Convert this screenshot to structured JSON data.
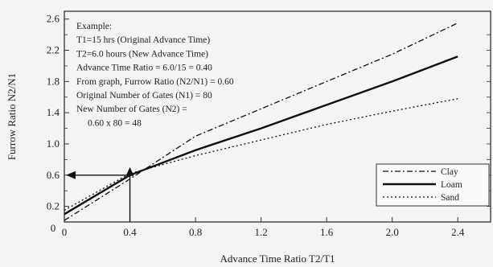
{
  "chart_data": {
    "type": "line",
    "xlabel": "Advance Time Ratio T2/T1",
    "ylabel": "Furrow Ratio N2/N1",
    "xlim": [
      0,
      2.6
    ],
    "ylim": [
      0,
      2.7
    ],
    "x_ticks": [
      "0",
      "0.4",
      "0.8",
      "1.2",
      "1.6",
      "2.0",
      "2.4"
    ],
    "x_tick_values": [
      0,
      0.4,
      0.8,
      1.2,
      1.6,
      2.0,
      2.4
    ],
    "y_ticks": [
      "0.2",
      "0.6",
      "1.0",
      "1.4",
      "1.8",
      "2.2",
      "2.6"
    ],
    "y_tick_values": [
      0.2,
      0.6,
      1.0,
      1.4,
      1.8,
      2.2,
      2.6
    ],
    "y_origin_label": "0",
    "grid": false,
    "legend_position": "bottom-right",
    "series": [
      {
        "name": "Clay",
        "style": "dash-dot",
        "x": [
          0,
          0.4,
          0.8,
          1.2,
          1.6,
          2.0,
          2.4
        ],
        "y": [
          0.02,
          0.55,
          1.1,
          1.45,
          1.8,
          2.15,
          2.55
        ]
      },
      {
        "name": "Loam",
        "style": "solid",
        "x": [
          0,
          0.4,
          0.8,
          1.2,
          1.6,
          2.0,
          2.4
        ],
        "y": [
          0.1,
          0.6,
          0.92,
          1.2,
          1.5,
          1.8,
          2.12
        ]
      },
      {
        "name": "Sand",
        "style": "dotted",
        "x": [
          0,
          0.4,
          0.8,
          1.2,
          1.6,
          2.0,
          2.4
        ],
        "y": [
          0.15,
          0.62,
          0.85,
          1.05,
          1.25,
          1.42,
          1.58
        ]
      }
    ],
    "annotation": {
      "example_point": {
        "x": 0.4,
        "y": 0.6
      },
      "lines": [
        "Example:",
        "T1=15 hrs (Original Advance Time)",
        "T2=6.0 hours (New Advance Time)",
        "Advance Time Ratio = 6.0/15 = 0.40",
        "From graph, Furrow Ratio (N2/N1) = 0.60",
        "Original Number of Gates (N1) = 80",
        "New Number of Gates (N2) =",
        "0.60 x 80 = 48"
      ]
    }
  }
}
